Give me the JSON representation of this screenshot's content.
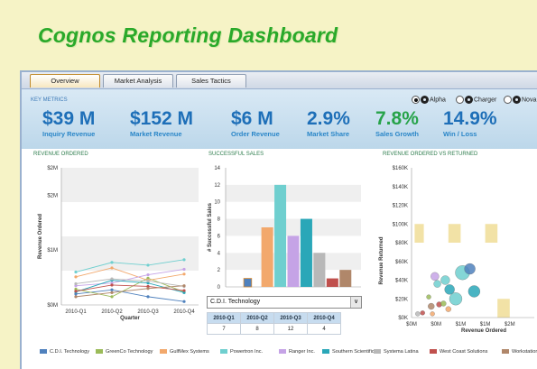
{
  "title": "Cognos Reporting Dashboard",
  "tabs": [
    {
      "label": "Overview",
      "active": true
    },
    {
      "label": "Market Analysis",
      "active": false
    },
    {
      "label": "Sales Tactics",
      "active": false
    }
  ],
  "key_metrics_label": "KEY METRICS",
  "companies": [
    {
      "label": "Alpha",
      "selected": true
    },
    {
      "label": "Charger",
      "selected": false
    },
    {
      "label": "Nova",
      "selected": false
    }
  ],
  "metrics": [
    {
      "value": "$39 M",
      "label": "Inquiry Revenue",
      "color": "#1e6fb8"
    },
    {
      "value": "$152 M",
      "label": "Market Revenue",
      "color": "#1e6fb8"
    },
    {
      "value": "$6 M",
      "label": "Order Revenue",
      "color": "#1e6fb8"
    },
    {
      "value": "2.9%",
      "label": "Market Share",
      "color": "#1e6fb8"
    },
    {
      "value": "7.8%",
      "label": "Sales Growth",
      "color": "#27a34a"
    },
    {
      "value": "14.9%",
      "label": "Win / Loss",
      "color": "#1e6fb8"
    }
  ],
  "panels": {
    "revenue_ordered": "REVENUE ORDERED",
    "successful_sales": "SUCCESSFUL SALES",
    "revenue_vs_returned": "REVENUE ORDERED VS RETURNED"
  },
  "dropdown": {
    "value": "C.D.I. Technology"
  },
  "quarter_table": {
    "headers": [
      "2010-Q1",
      "2010-Q2",
      "2010-Q3",
      "2010-Q4"
    ],
    "values": [
      "7",
      "8",
      "12",
      "4"
    ]
  },
  "legend": [
    {
      "name": "C.D.I. Technology",
      "color": "#4f81bd"
    },
    {
      "name": "GreenCo Technology",
      "color": "#9bbb59"
    },
    {
      "name": "GulfMex Systems",
      "color": "#f2a86c"
    },
    {
      "name": "Powertron Inc.",
      "color": "#6fcfcf"
    },
    {
      "name": "Ranger Inc.",
      "color": "#c5a3e6"
    },
    {
      "name": "Southern Scientific",
      "color": "#2aa7b8"
    },
    {
      "name": "Systema Latina",
      "color": "#b8b8b8"
    },
    {
      "name": "West Coast Solutions",
      "color": "#c0504d"
    },
    {
      "name": "Workstation Int'l",
      "color": "#b0876a"
    }
  ],
  "chart_data": [
    {
      "type": "line",
      "title": "REVENUE ORDERED",
      "ylabel": "Revenue Ordered",
      "xlabel": "Quarter",
      "categories": [
        "2010-Q1",
        "2010-Q2",
        "2010-Q3",
        "2010-Q4"
      ],
      "y_ticks": [
        "$0M",
        "$0M",
        "$1M",
        "$1M",
        "$2M",
        "$2M"
      ],
      "y_tick_values": [
        0,
        0.4,
        0.8,
        1.2,
        1.6,
        2.0
      ],
      "ylim": [
        0,
        2
      ],
      "series": [
        {
          "name": "C.D.I. Technology",
          "values": [
            0.16,
            0.22,
            0.12,
            0.05
          ]
        },
        {
          "name": "GreenCo Technology",
          "values": [
            0.23,
            0.12,
            0.39,
            0.19
          ]
        },
        {
          "name": "GulfMex Systems",
          "values": [
            0.41,
            0.54,
            0.36,
            0.45
          ]
        },
        {
          "name": "Powertron Inc.",
          "values": [
            0.48,
            0.62,
            0.58,
            0.66
          ]
        },
        {
          "name": "Ranger Inc.",
          "values": [
            0.28,
            0.32,
            0.44,
            0.52
          ]
        },
        {
          "name": "Southern Scientific",
          "values": [
            0.19,
            0.36,
            0.32,
            0.18
          ]
        },
        {
          "name": "Systema Latina",
          "values": [
            0.31,
            0.38,
            0.35,
            0.27
          ]
        },
        {
          "name": "West Coast Solutions",
          "values": [
            0.2,
            0.29,
            0.27,
            0.21
          ]
        },
        {
          "name": "Workstation Int'l",
          "values": [
            0.12,
            0.18,
            0.24,
            0.28
          ]
        }
      ]
    },
    {
      "type": "bar",
      "title": "SUCCESSFUL SALES",
      "ylabel": "# Successful Sales",
      "ylim": [
        0,
        14
      ],
      "y_ticks": [
        0,
        2,
        4,
        6,
        8,
        10,
        12,
        14
      ],
      "series": [
        {
          "name": "C.D.I. Technology",
          "value": 1
        },
        {
          "name": "GreenCo Technology",
          "value": 1
        },
        {
          "name": "GulfMex Systems",
          "value": 7
        },
        {
          "name": "Powertron Inc.",
          "value": 12
        },
        {
          "name": "Ranger Inc.",
          "value": 6
        },
        {
          "name": "Southern Scientific",
          "value": 8
        },
        {
          "name": "Systema Latina",
          "value": 4
        },
        {
          "name": "West Coast Solutions",
          "value": 1
        },
        {
          "name": "Workstation Int'l",
          "value": 2
        }
      ]
    },
    {
      "type": "scatter",
      "title": "REVENUE ORDERED VS RETURNED",
      "xlabel": "Revenue Ordered",
      "ylabel": "Revenue Returned",
      "x_ticks": [
        "$0M",
        "$0M",
        "$1M",
        "$1M",
        "$2M"
      ],
      "x_tick_values": [
        0,
        0.4,
        0.8,
        1.2,
        1.6
      ],
      "xlim": [
        0,
        2
      ],
      "y_ticks": [
        "$0K",
        "$20K",
        "$40K",
        "$60K",
        "$80K",
        "$100K",
        "$120K",
        "$140K",
        "$160K"
      ],
      "ylim": [
        0,
        160
      ],
      "points": [
        {
          "x": 0.38,
          "y": 44,
          "r": 4.5,
          "color": "#c5a3e6"
        },
        {
          "x": 0.42,
          "y": 36,
          "r": 4,
          "color": "#6fcfcf"
        },
        {
          "x": 0.55,
          "y": 40,
          "r": 5,
          "color": "#6fcfcf"
        },
        {
          "x": 0.62,
          "y": 30,
          "r": 5.5,
          "color": "#2aa7b8"
        },
        {
          "x": 0.72,
          "y": 20,
          "r": 7,
          "color": "#6fcfcf"
        },
        {
          "x": 0.83,
          "y": 48,
          "r": 8,
          "color": "#6fcfcf"
        },
        {
          "x": 0.95,
          "y": 52,
          "r": 6,
          "color": "#4f81bd"
        },
        {
          "x": 1.02,
          "y": 28,
          "r": 6.5,
          "color": "#2aa7b8"
        },
        {
          "x": 0.45,
          "y": 14,
          "r": 3,
          "color": "#c0504d"
        },
        {
          "x": 0.32,
          "y": 12,
          "r": 3.5,
          "color": "#b0876a"
        },
        {
          "x": 0.6,
          "y": 9,
          "r": 3,
          "color": "#f2a86c"
        },
        {
          "x": 0.28,
          "y": 22,
          "r": 2.5,
          "color": "#9bbb59"
        },
        {
          "x": 0.52,
          "y": 15,
          "r": 3,
          "color": "#9bbb59"
        },
        {
          "x": 0.18,
          "y": 5,
          "r": 2.5,
          "color": "#c0504d"
        },
        {
          "x": 0.34,
          "y": 4,
          "r": 2.5,
          "color": "#f2a86c"
        },
        {
          "x": 0.1,
          "y": 4,
          "r": 2.5,
          "color": "#b8b8b8"
        }
      ]
    }
  ]
}
